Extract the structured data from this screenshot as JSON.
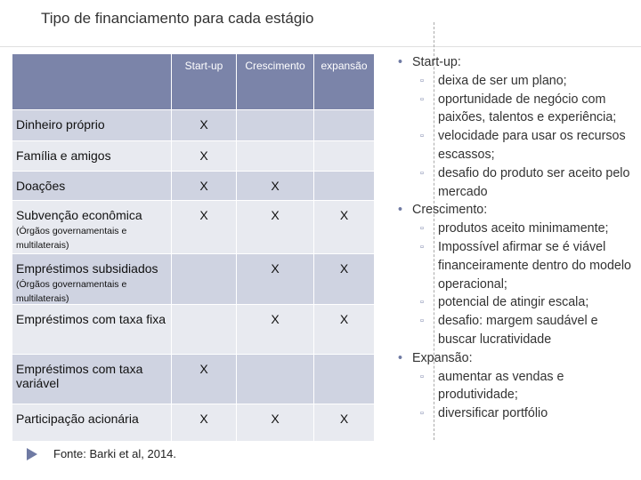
{
  "title": "Tipo de financiamento para cada estágio",
  "table": {
    "columns": [
      "Start-up",
      "Crescimento",
      "expansão"
    ],
    "rows": [
      {
        "label": "Dinheiro próprio",
        "cells": [
          "X",
          null,
          null
        ]
      },
      {
        "label": "Família e amigos",
        "cells": [
          "X",
          null,
          null
        ]
      },
      {
        "label": "Doações",
        "cells": [
          "X",
          "X",
          null
        ]
      },
      {
        "label": "Subvenção econômica",
        "note": "(Órgãos governamentais e multilaterais)",
        "cells": [
          "X",
          "X",
          "X"
        ]
      },
      {
        "label": "Empréstimos subsidiados",
        "note": "(Órgãos governamentais e multilaterais)",
        "cells": [
          null,
          "X",
          "X"
        ]
      },
      {
        "label": "Empréstimos com taxa fixa",
        "cells": [
          null,
          "X",
          "X"
        ]
      },
      {
        "label": "Empréstimos com taxa variável",
        "cells": [
          "X",
          null,
          null
        ]
      },
      {
        "label": "Participação acionária",
        "cells": [
          "X",
          "X",
          "X"
        ]
      }
    ]
  },
  "source": "Fonte: Barki et al, 2014.",
  "bullets": [
    {
      "text": "Start-up:",
      "items": [
        "deixa de ser um plano;",
        "oportunidade de negócio com paixões, talentos e experiência;",
        "velocidade para usar os recursos escassos;",
        "desafio do produto ser aceito pelo mercado"
      ]
    },
    {
      "text": "Crescimento:",
      "items": [
        "produtos aceito minimamente;",
        "Impossível afirmar se é viável financeiramente dentro do modelo operacional;",
        "potencial de atingir escala;",
        "desafio: margem saudável e buscar lucratividade"
      ]
    },
    {
      "text": "Expansão:",
      "items": [
        "aumentar as vendas e produtividade;",
        "diversificar portfólio"
      ]
    }
  ]
}
